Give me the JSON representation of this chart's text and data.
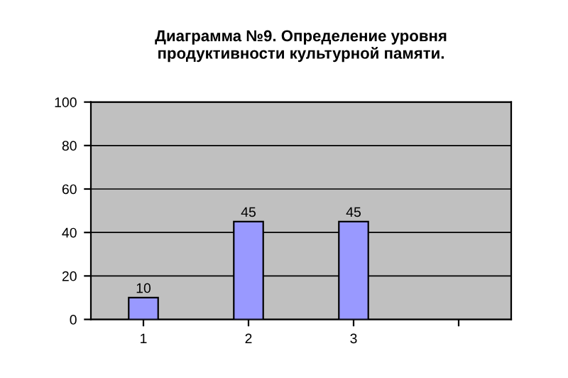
{
  "chart_data": {
    "type": "bar",
    "title": "Диаграмма №9. Определение уровня\nпродуктивности культурной памяти.",
    "categories": [
      "1",
      "2",
      "3",
      null
    ],
    "values": [
      10,
      45,
      45,
      null
    ],
    "color": "#9999ff",
    "ylim": [
      0,
      100
    ],
    "yticks": [
      0,
      20,
      40,
      60,
      80,
      100
    ],
    "grid": "y",
    "data_labels": true
  }
}
